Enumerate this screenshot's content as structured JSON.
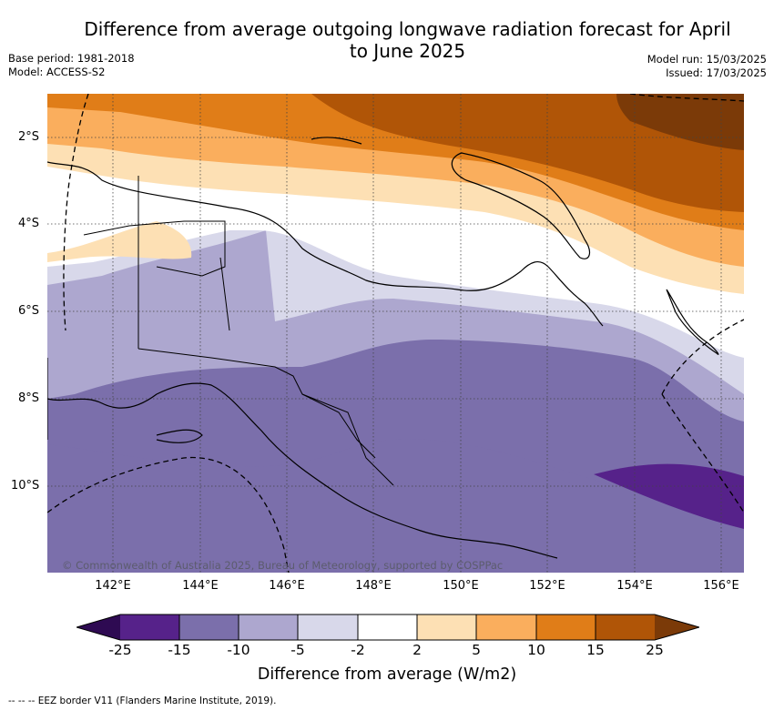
{
  "title": "Difference from average outgoing longwave radiation forecast for April to June 2025",
  "meta_left": [
    "Base period: 1981-2018",
    "Model: ACCESS-S2"
  ],
  "meta_right": [
    "Model run: 15/03/2025",
    "Issued: 17/03/2025"
  ],
  "map": {
    "lat_range": [
      -12.1,
      -1.0
    ],
    "lon_range": [
      140.6,
      156.5
    ],
    "lat_ticks": [
      "2°S",
      "4°S",
      "6°S",
      "8°S",
      "10°S"
    ],
    "lon_ticks": [
      "142°E",
      "144°E",
      "146°E",
      "148°E",
      "150°E",
      "152°E",
      "154°E",
      "156°E"
    ],
    "copyright": "© Commonwealth of Australia 2025, Bureau of Meteorology, supported by COSPPac"
  },
  "colorbar": {
    "ticks": [
      "-25",
      "-15",
      "-10",
      "-5",
      "-2",
      "2",
      "5",
      "10",
      "15",
      "25"
    ],
    "colors": [
      "#2e0a52",
      "#56228a",
      "#7b6fab",
      "#ada7cf",
      "#d8d8ea",
      "#ffffff",
      "#fde0b4",
      "#faae5d",
      "#e07d18",
      "#b05507",
      "#7b3a08"
    ],
    "label": "Difference from average (W/m2)"
  },
  "legend_note": "--  --  -- EEZ border V11 (Flanders Marine Institute, 2019)."
}
